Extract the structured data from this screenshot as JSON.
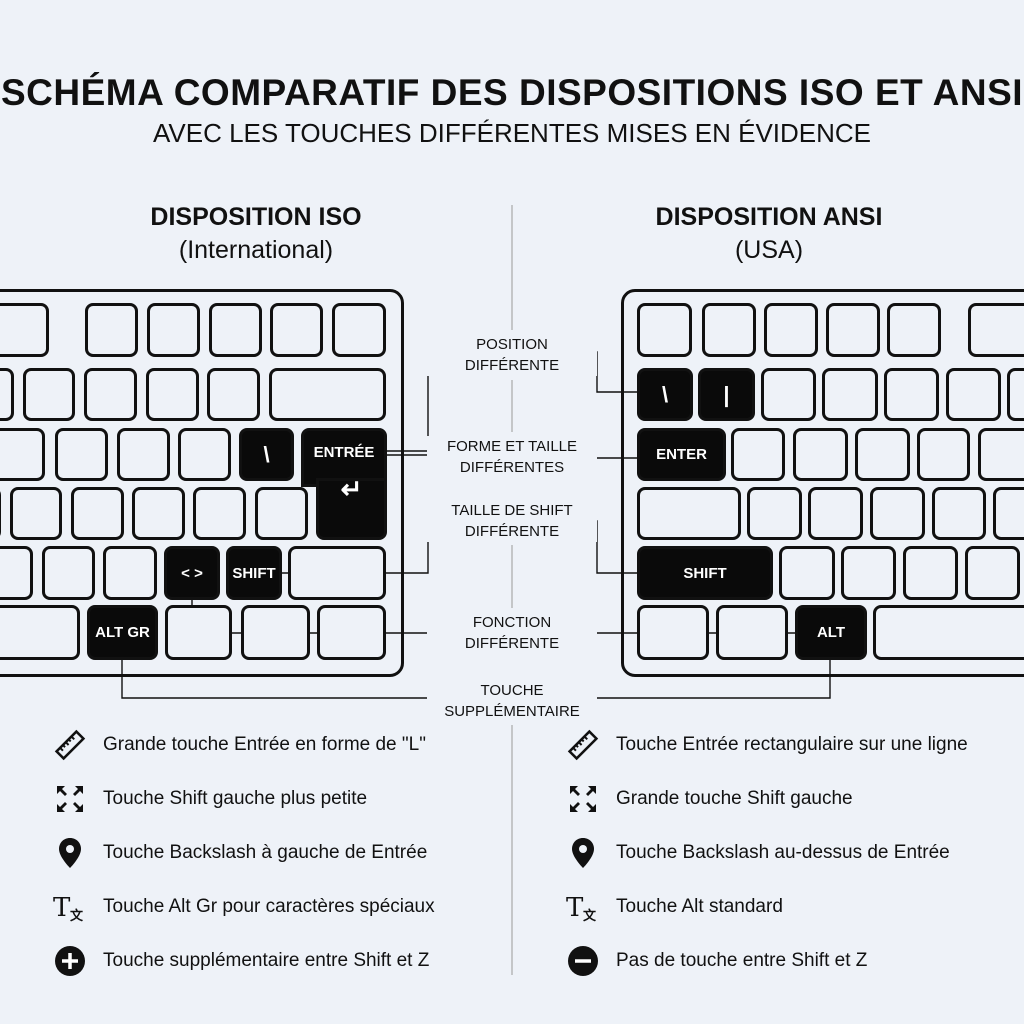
{
  "title": "SCHÉMA COMPARATIF DES DISPOSITIONS ISO ET ANSI",
  "subtitle": "AVEC LES TOUCHES DIFFÉRENTES MISES EN ÉVIDENCE",
  "iso": {
    "heading": "DISPOSITION ISO",
    "subheading": "(International)",
    "keys": {
      "backslash": "\\",
      "enter": "ENTRÉE",
      "enter_symbol": "↵",
      "angle": "< >",
      "shift": "SHIFT",
      "altgr": "ALT GR"
    },
    "features": [
      {
        "icon": "ruler-icon",
        "text": "Grande touche Entrée en forme de \"L\""
      },
      {
        "icon": "shrink-arrows-icon",
        "text": "Touche Shift gauche plus petite"
      },
      {
        "icon": "map-pin-icon",
        "text": "Touche Backslash à gauche de Entrée"
      },
      {
        "icon": "translate-icon",
        "text": "Touche Alt Gr pour caractères spéciaux"
      },
      {
        "icon": "plus-circle-icon",
        "text": "Touche supplémentaire entre Shift et Z"
      }
    ]
  },
  "ansi": {
    "heading": "DISPOSITION ANSI",
    "subheading": "(USA)",
    "keys": {
      "backslash": "\\",
      "pipe": "|",
      "enter": "ENTER",
      "shift": "SHIFT",
      "alt": "ALT"
    },
    "features": [
      {
        "icon": "ruler-icon",
        "text": "Touche Entrée rectangulaire sur une ligne"
      },
      {
        "icon": "shrink-arrows-icon",
        "text": "Grande touche Shift gauche"
      },
      {
        "icon": "map-pin-icon",
        "text": "Touche Backslash au-dessus de Entrée"
      },
      {
        "icon": "translate-icon",
        "text": "Touche Alt standard"
      },
      {
        "icon": "minus-circle-icon",
        "text": "Pas de touche entre Shift et Z"
      }
    ]
  },
  "callouts": [
    {
      "line1": "POSITION",
      "line2": "DIFFÉRENTE"
    },
    {
      "line1": "FORME ET TAILLE",
      "line2": "DIFFÉRENTES"
    },
    {
      "line1": "TAILLE DE SHIFT",
      "line2": "DIFFÉRENTE"
    },
    {
      "line1": "FONCTION",
      "line2": "DIFFÉRENTE"
    },
    {
      "line1": "TOUCHE",
      "line2": "SUPPLÉMENTAIRE"
    }
  ],
  "colors": {
    "background": "#eef2f8",
    "highlight": "#0a0a0a",
    "outline": "#111111"
  }
}
